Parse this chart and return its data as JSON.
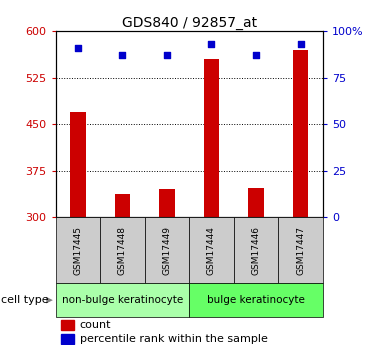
{
  "title": "GDS840 / 92857_at",
  "samples": [
    "GSM17445",
    "GSM17448",
    "GSM17449",
    "GSM17444",
    "GSM17446",
    "GSM17447"
  ],
  "counts": [
    470,
    338,
    345,
    555,
    348,
    570
  ],
  "percentile_ranks": [
    91,
    87,
    87,
    93,
    87,
    93
  ],
  "ylim_left": [
    300,
    600
  ],
  "ylim_right": [
    0,
    100
  ],
  "yticks_left": [
    300,
    375,
    450,
    525,
    600
  ],
  "yticks_right": [
    0,
    25,
    50,
    75,
    100
  ],
  "ytick_labels_left": [
    "300",
    "375",
    "450",
    "525",
    "600"
  ],
  "ytick_labels_right": [
    "0",
    "25",
    "50",
    "75",
    "100%"
  ],
  "bar_color": "#cc0000",
  "dot_color": "#0000cc",
  "cell_type_groups": [
    {
      "label": "non-bulge keratinocyte",
      "indices": [
        0,
        1,
        2
      ],
      "color": "#aaffaa"
    },
    {
      "label": "bulge keratinocyte",
      "indices": [
        3,
        4,
        5
      ],
      "color": "#66ff66"
    }
  ],
  "cell_type_label": "cell type",
  "legend_count_label": "count",
  "legend_percentile_label": "percentile rank within the sample",
  "sample_bg_color": "#cccccc",
  "left_tick_color": "#cc0000",
  "right_tick_color": "#0000cc"
}
